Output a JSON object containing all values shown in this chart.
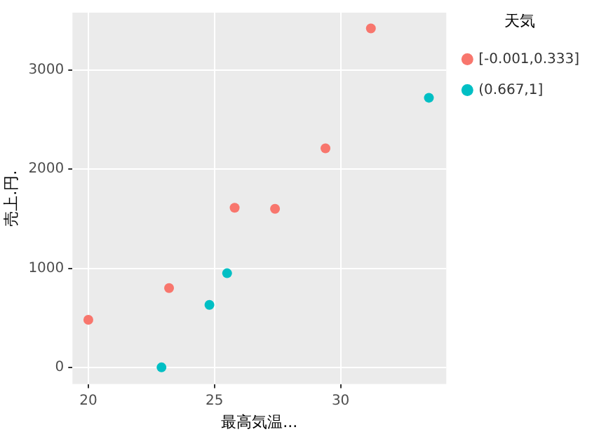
{
  "chart_data": {
    "type": "scatter",
    "xlabel": "最高気温...",
    "ylabel": "売上.円.",
    "legend_title": "天気",
    "legend": "right",
    "grid": true,
    "marker": "circle",
    "xlim": [
      19.37,
      34.19
    ],
    "xticks": [
      20,
      25,
      30
    ],
    "ylim": [
      -168,
      3579
    ],
    "yticks": [
      0,
      1000,
      2000,
      3000
    ],
    "series": [
      {
        "name": "[-0.001,0.333]",
        "color": "#f8766d",
        "x": [
          20,
          23.2,
          25.8,
          27.4,
          29.4,
          31.2
        ],
        "values": [
          480,
          800,
          1610,
          1600,
          2210,
          3420
        ]
      },
      {
        "name": "(0.667,1]",
        "color": "#00bfc4",
        "x": [
          22.9,
          24.8,
          25.5,
          33.5
        ],
        "values": [
          0,
          630,
          950,
          2720
        ]
      }
    ]
  }
}
